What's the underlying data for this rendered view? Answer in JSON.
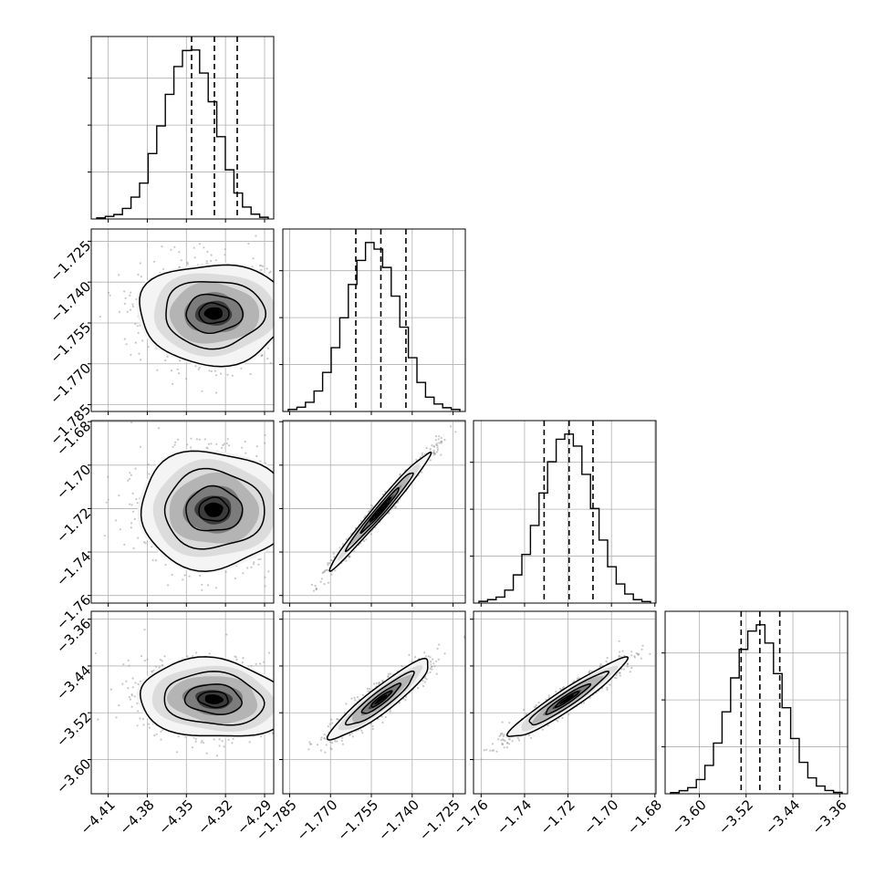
{
  "figure": {
    "type": "corner-plot"
  },
  "chart_data": {
    "type": "corner",
    "n_params": 4,
    "params": [
      {
        "ticks": [
          -4.41,
          -4.38,
          -4.35,
          -4.32,
          -4.29
        ],
        "tick_labels": [
          "−4.41",
          "−4.38",
          "−4.35",
          "−4.32",
          "−4.29"
        ],
        "range": [
          -4.423,
          -4.283
        ],
        "quantiles": [
          -4.346,
          -4.3285,
          -4.311
        ],
        "hist": [
          0.6,
          1.5,
          2.6,
          6.2,
          12.8,
          21.0,
          38.3,
          54.5,
          73.0,
          89.3,
          98.7,
          99.0,
          85.5,
          68.7,
          48.2,
          28.8,
          15.2,
          7.0,
          2.8,
          1.0
        ]
      },
      {
        "ticks": [
          -1.785,
          -1.77,
          -1.755,
          -1.74,
          -1.725
        ],
        "tick_labels": [
          "−1.785",
          "−1.770",
          "−1.755",
          "−1.740",
          "−1.725"
        ],
        "range": [
          -1.7875,
          -1.7205
        ],
        "quantiles": [
          -1.7607,
          -1.7515,
          -1.7423
        ],
        "hist": [
          1.2,
          2.5,
          5.4,
          12.0,
          22.9,
          37.4,
          54.9,
          74.4,
          88.5,
          99.0,
          95.1,
          84.4,
          67.6,
          49.4,
          31.5,
          17.0,
          8.4,
          4.4,
          2.2,
          1.2
        ]
      },
      {
        "ticks": [
          -1.76,
          -1.74,
          -1.72,
          -1.7,
          -1.68
        ],
        "tick_labels": [
          "−1.76",
          "−1.74",
          "−1.72",
          "−1.70",
          "−1.68"
        ],
        "range": [
          -1.7635,
          -1.6795
        ],
        "quantiles": [
          -1.731,
          -1.7195,
          -1.7085
        ],
        "hist": [
          1.0,
          2.0,
          3.5,
          7.6,
          16.5,
          28.5,
          45.5,
          64.5,
          82.8,
          96.0,
          99.0,
          92.0,
          75.4,
          55.4,
          36.9,
          21.3,
          11.2,
          5.3,
          2.0,
          0.9
        ]
      },
      {
        "ticks": [
          -3.6,
          -3.52,
          -3.44,
          -3.36
        ],
        "tick_labels": [
          "−3.60",
          "−3.52",
          "−3.44",
          "−3.36"
        ],
        "range": [
          -3.6585,
          -3.3465
        ],
        "quantiles": [
          -3.5285,
          -3.4965,
          -3.4625
        ],
        "hist": [
          0.7,
          1.8,
          3.6,
          8.3,
          16.6,
          29.7,
          48.0,
          67.9,
          84.6,
          95.3,
          99.0,
          88.3,
          70.4,
          50.4,
          32.4,
          18.4,
          9.3,
          4.5,
          1.9,
          0.8
        ]
      }
    ],
    "pairs": [
      {
        "xi": 0,
        "yi": 1,
        "corr": 0.0,
        "center": [
          -4.329,
          -1.7515
        ],
        "sigma": [
          0.0255,
          0.0082
        ]
      },
      {
        "xi": 0,
        "yi": 2,
        "corr": 0.0,
        "center": [
          -4.329,
          -1.7205
        ],
        "sigma": [
          0.0255,
          0.012
        ]
      },
      {
        "xi": 0,
        "yi": 3,
        "corr": -0.12,
        "center": [
          -4.329,
          -3.497
        ],
        "sigma": [
          0.0255,
          0.03
        ]
      },
      {
        "xi": 1,
        "yi": 2,
        "corr": 0.985,
        "center": [
          -1.7515,
          -1.7205
        ],
        "sigma": [
          0.0082,
          0.012
        ]
      },
      {
        "xi": 1,
        "yi": 3,
        "corr": 0.92,
        "center": [
          -1.7515,
          -3.497
        ],
        "sigma": [
          0.0082,
          0.03
        ]
      },
      {
        "xi": 2,
        "yi": 3,
        "corr": 0.95,
        "center": [
          -1.7205,
          -3.497
        ],
        "sigma": [
          0.012,
          0.03
        ]
      }
    ],
    "colors": {
      "line": "#000000",
      "grid": "#b0b0b0",
      "points": "#9a9a9a",
      "fill_levels": [
        "#f4f4f4",
        "#dcdcdc",
        "#b4b4b4",
        "#7c7c7c",
        "#3c3c3c",
        "#000000"
      ]
    },
    "grid": true,
    "quantile_line_style": "dashed"
  }
}
